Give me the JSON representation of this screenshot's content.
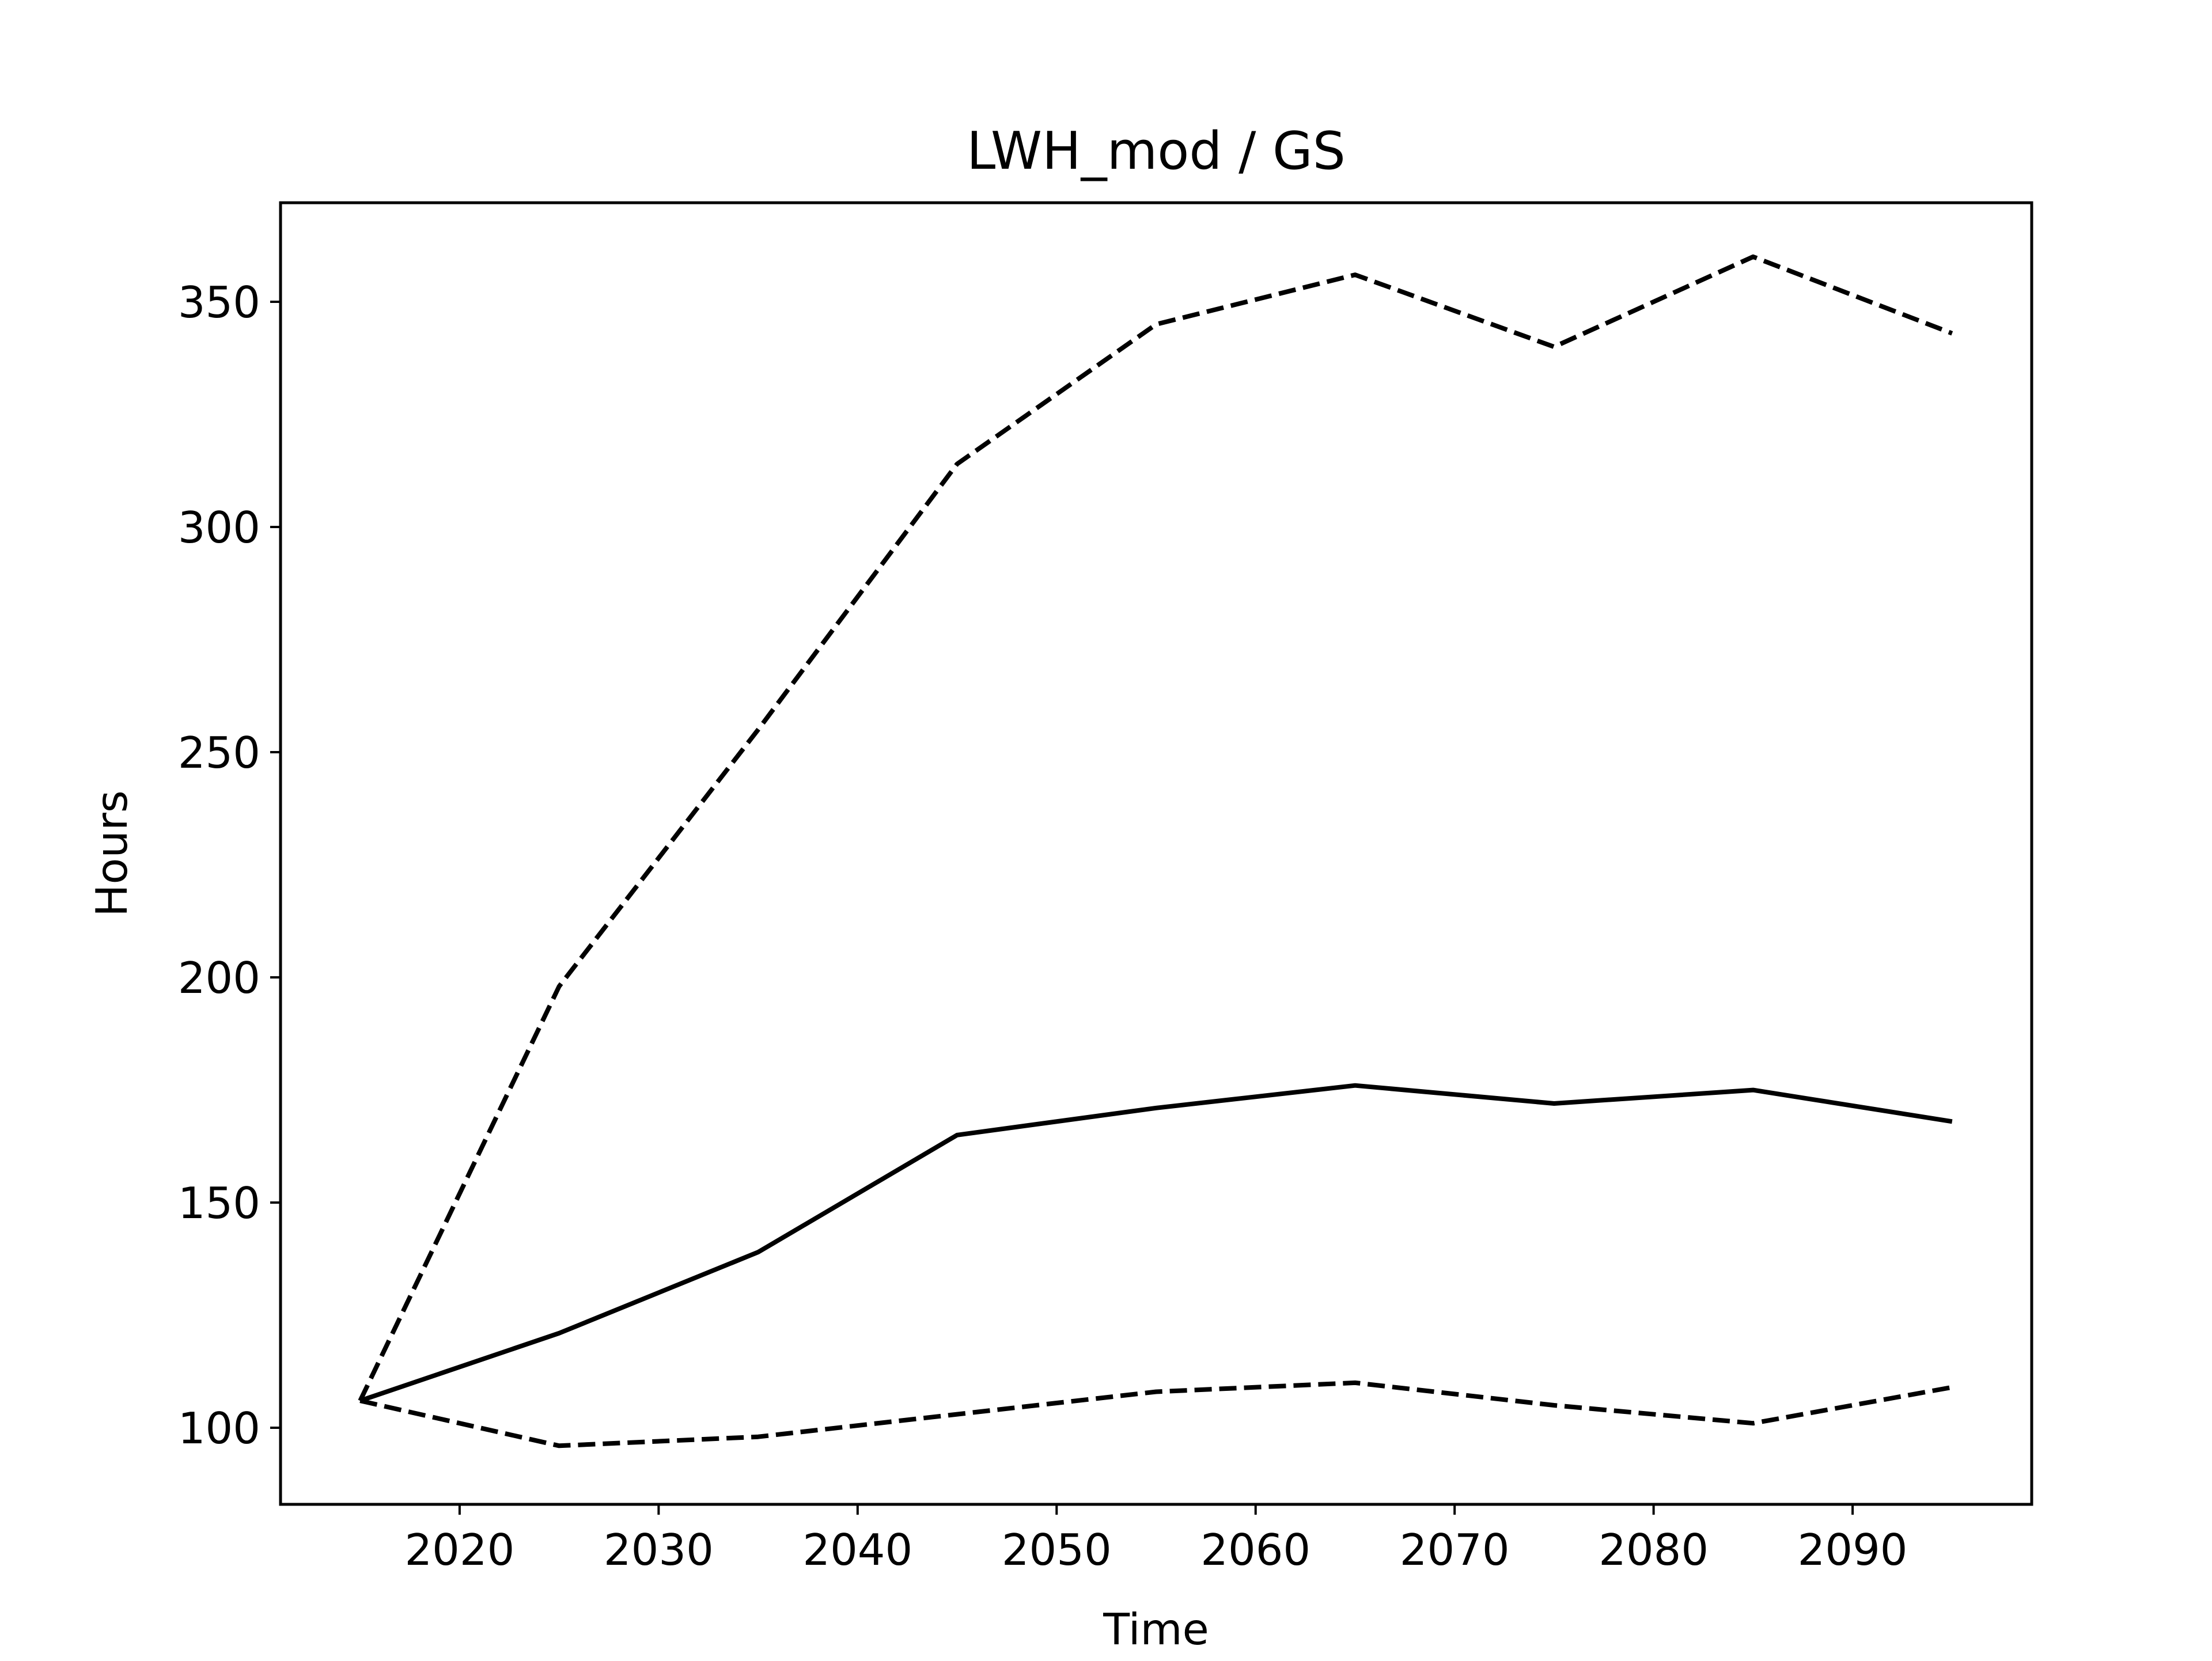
{
  "chart_data": {
    "type": "line",
    "title": "LWH_mod / GS",
    "xlabel": "Time",
    "ylabel": "Hours",
    "xlim": [
      2011,
      2099
    ],
    "ylim": [
      83,
      372
    ],
    "x_ticks": [
      "2020",
      "2030",
      "2040",
      "2050",
      "2060",
      "2070",
      "2080",
      "2090"
    ],
    "y_ticks": [
      "100",
      "150",
      "200",
      "250",
      "300",
      "350"
    ],
    "grid": false,
    "legend": false,
    "x": [
      2015,
      2025,
      2035,
      2045,
      2055,
      2065,
      2075,
      2085,
      2095
    ],
    "series": [
      {
        "style": "solid",
        "color": "#000000",
        "values": [
          106,
          121,
          139,
          165,
          171,
          176,
          172,
          175,
          168
        ]
      },
      {
        "style": "dashed",
        "color": "#000000",
        "values": [
          106,
          198,
          255,
          314,
          345,
          356,
          340,
          360,
          343
        ]
      },
      {
        "style": "dashed",
        "color": "#000000",
        "values": [
          106,
          96,
          98,
          103,
          108,
          110,
          105,
          101,
          109
        ]
      }
    ]
  }
}
